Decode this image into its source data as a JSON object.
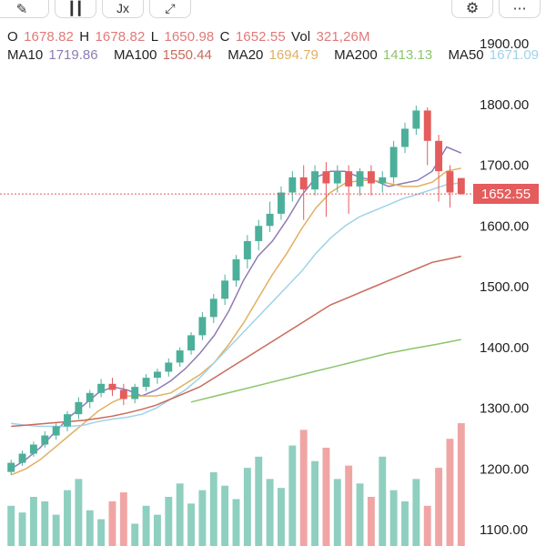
{
  "toolbar": {
    "buttons": [
      {
        "name": "drawing-tool-button",
        "icon": "brush-icon",
        "glyph": "✎"
      },
      {
        "name": "indicator-button",
        "icon": "candle-icon",
        "glyph": "┃"
      },
      {
        "name": "function-button",
        "icon": "fx-icon",
        "glyph": "Jx"
      },
      {
        "name": "expand-button",
        "icon": "expand-icon",
        "glyph": "⤢"
      },
      {
        "name": "settings-button",
        "icon": "gear-icon",
        "glyph": "⚙"
      },
      {
        "name": "share-button",
        "icon": "share-icon",
        "glyph": "⋯"
      }
    ]
  },
  "ohlc": {
    "o_label": "O",
    "o_value": "1678.82",
    "h_label": "H",
    "h_value": "1678.82",
    "l_label": "L",
    "l_value": "1650.98",
    "c_label": "C",
    "c_value": "1652.55",
    "vol_label": "Vol",
    "vol_value": "321,26M"
  },
  "moving_averages": [
    {
      "label": "MA10",
      "value": "1719.86",
      "color": "#8e7bb5"
    },
    {
      "label": "MA100",
      "value": "1550.44",
      "color": "#c96a5a"
    },
    {
      "label": "MA20",
      "value": "1694.79",
      "color": "#e0b060"
    },
    {
      "label": "MA200",
      "value": "1413.13",
      "color": "#8cc56a"
    },
    {
      "label": "MA50",
      "value": "1671.09",
      "color": "#9fd3e8"
    }
  ],
  "last_price": "1652.55",
  "colors": {
    "up": "#4caf9a",
    "down": "#e45c5c",
    "text": "#222222"
  },
  "chart_data": {
    "type": "line",
    "yaxis_ticks": [
      "1900.00",
      "1800.00",
      "1700.00",
      "1600.00",
      "1500.00",
      "1400.00",
      "1300.00",
      "1200.00",
      "1100.00"
    ],
    "ylim": [
      1080,
      1925
    ],
    "series": [
      {
        "name": "MA10",
        "color": "#8e7bb5",
        "values": [
          1200,
          1215,
          1235,
          1260,
          1285,
          1305,
          1325,
          1335,
          1330,
          1320,
          1330,
          1345,
          1365,
          1390,
          1420,
          1460,
          1510,
          1550,
          1575,
          1610,
          1650,
          1680,
          1690,
          1690,
          1680,
          1675,
          1665,
          1670,
          1675,
          1690,
          1730,
          1720
        ]
      },
      {
        "name": "MA20",
        "color": "#e0b060",
        "values": [
          1190,
          1200,
          1215,
          1235,
          1255,
          1275,
          1295,
          1310,
          1320,
          1320,
          1320,
          1325,
          1340,
          1355,
          1375,
          1405,
          1440,
          1480,
          1520,
          1555,
          1595,
          1630,
          1655,
          1670,
          1675,
          1675,
          1670,
          1665,
          1665,
          1672,
          1690,
          1695
        ]
      },
      {
        "name": "MA50",
        "color": "#9fd3e8",
        "values": [
          1275,
          1272,
          1270,
          1270,
          1270,
          1272,
          1278,
          1282,
          1285,
          1290,
          1300,
          1315,
          1330,
          1350,
          1375,
          1400,
          1425,
          1450,
          1475,
          1500,
          1525,
          1555,
          1580,
          1600,
          1615,
          1625,
          1635,
          1645,
          1652,
          1660,
          1668,
          1671
        ]
      },
      {
        "name": "MA100",
        "color": "#c96a5a",
        "values": [
          1270,
          1272,
          1274,
          1276,
          1278,
          1280,
          1283,
          1287,
          1292,
          1298,
          1305,
          1315,
          1325,
          1335,
          1350,
          1365,
          1380,
          1395,
          1410,
          1425,
          1440,
          1455,
          1470,
          1480,
          1490,
          1500,
          1510,
          1520,
          1530,
          1540,
          1545,
          1550
        ]
      },
      {
        "name": "MA200",
        "color": "#8cc56a",
        "x_start": 16,
        "values": [
          1310,
          1320,
          1330,
          1340,
          1350,
          1360,
          1370,
          1380,
          1390,
          1398,
          1405,
          1413
        ]
      }
    ],
    "candles": [
      [
        1195,
        1210,
        1190,
        1215
      ],
      [
        1210,
        1225,
        1205,
        1230
      ],
      [
        1225,
        1240,
        1220,
        1245
      ],
      [
        1240,
        1255,
        1235,
        1262
      ],
      [
        1255,
        1270,
        1248,
        1275
      ],
      [
        1270,
        1290,
        1262,
        1295
      ],
      [
        1290,
        1310,
        1282,
        1318
      ],
      [
        1310,
        1325,
        1300,
        1330
      ],
      [
        1325,
        1340,
        1318,
        1348
      ],
      [
        1340,
        1330,
        1320,
        1350
      ],
      [
        1330,
        1315,
        1305,
        1340
      ],
      [
        1315,
        1335,
        1308,
        1340
      ],
      [
        1335,
        1350,
        1328,
        1356
      ],
      [
        1350,
        1360,
        1340,
        1365
      ],
      [
        1360,
        1375,
        1352,
        1382
      ],
      [
        1375,
        1395,
        1368,
        1400
      ],
      [
        1395,
        1420,
        1388,
        1425
      ],
      [
        1420,
        1450,
        1412,
        1458
      ],
      [
        1450,
        1480,
        1440,
        1488
      ],
      [
        1480,
        1510,
        1470,
        1520
      ],
      [
        1510,
        1545,
        1500,
        1552
      ],
      [
        1545,
        1575,
        1530,
        1585
      ],
      [
        1575,
        1600,
        1560,
        1610
      ],
      [
        1600,
        1620,
        1590,
        1640
      ],
      [
        1620,
        1655,
        1610,
        1665
      ],
      [
        1655,
        1680,
        1640,
        1690
      ],
      [
        1680,
        1660,
        1610,
        1700
      ],
      [
        1660,
        1690,
        1650,
        1700
      ],
      [
        1690,
        1670,
        1615,
        1705
      ],
      [
        1670,
        1690,
        1655,
        1700
      ],
      [
        1690,
        1665,
        1620,
        1700
      ],
      [
        1665,
        1690,
        1650,
        1695
      ],
      [
        1690,
        1670,
        1650,
        1700
      ],
      [
        1670,
        1680,
        1655,
        1690
      ],
      [
        1680,
        1730,
        1670,
        1740
      ],
      [
        1730,
        1760,
        1720,
        1770
      ],
      [
        1760,
        1790,
        1750,
        1798
      ],
      [
        1790,
        1740,
        1700,
        1795
      ],
      [
        1740,
        1690,
        1640,
        1750
      ],
      [
        1690,
        1655,
        1630,
        1700
      ],
      [
        1678.82,
        1652.55,
        1650.98,
        1678.82
      ]
    ],
    "volume": [
      18,
      15,
      22,
      20,
      14,
      25,
      30,
      16,
      12,
      20,
      24,
      10,
      18,
      14,
      22,
      28,
      19,
      25,
      33,
      27,
      21,
      35,
      40,
      30,
      26,
      45,
      52,
      38,
      44,
      30,
      36,
      28,
      22,
      40,
      25,
      20,
      30,
      18,
      35,
      48,
      55
    ]
  }
}
